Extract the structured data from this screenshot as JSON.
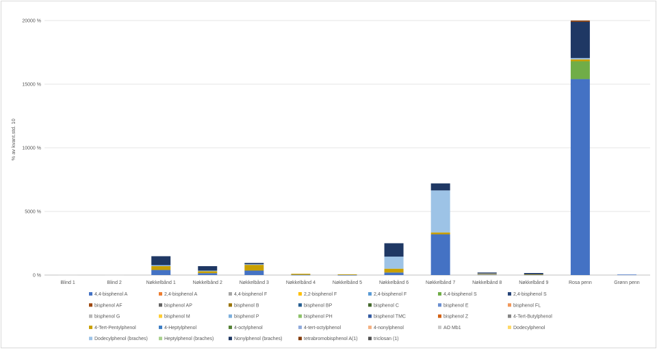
{
  "chart_data": {
    "type": "bar",
    "stacked": true,
    "title": "",
    "xlabel": "",
    "ylabel": "% av kvant.std. 10",
    "ylim": [
      0,
      20000
    ],
    "ytick_labels": [
      "0 %",
      "5000 %",
      "10000 %",
      "15000 %",
      "20000 %"
    ],
    "ytick_values": [
      0,
      5000,
      10000,
      15000,
      20000
    ],
    "grid": true,
    "legend_position": "bottom",
    "categories": [
      "Blind 1",
      "Blind 2",
      "Nøkkelbånd 1",
      "Nøkkelbånd 2",
      "Nøkkelbånd 3",
      "Nøkkelbånd 4",
      "Nøkkelbånd 5",
      "Nøkkelbånd 6",
      "Nøkkelbånd 7",
      "Nøkkelbånd 8",
      "Nøkkelbånd 9",
      "Rosa penn",
      "Grønn penn"
    ],
    "series": [
      {
        "name": "4,4-bisphenol A",
        "color": "#4472c4",
        "values": [
          0,
          0,
          400,
          150,
          350,
          20,
          10,
          200,
          3200,
          40,
          30,
          15400,
          40
        ]
      },
      {
        "name": "2,4-bisphenol A",
        "color": "#ed7d31",
        "values": [
          0,
          0,
          0,
          0,
          0,
          0,
          0,
          0,
          0,
          0,
          0,
          0,
          0
        ]
      },
      {
        "name": "4,4-bisphenol F",
        "color": "#a5a5a5",
        "values": [
          0,
          0,
          0,
          0,
          0,
          0,
          0,
          0,
          0,
          0,
          0,
          0,
          0
        ]
      },
      {
        "name": "2,2-bisphenol F",
        "color": "#ffc000",
        "values": [
          0,
          0,
          0,
          0,
          0,
          0,
          0,
          0,
          0,
          0,
          0,
          0,
          0
        ]
      },
      {
        "name": "2,4-bisphenol F",
        "color": "#5b9bd5",
        "values": [
          0,
          0,
          0,
          0,
          0,
          0,
          0,
          0,
          0,
          0,
          0,
          0,
          0
        ]
      },
      {
        "name": "4,4-bisphenol S",
        "color": "#70ad47",
        "values": [
          0,
          0,
          0,
          0,
          0,
          0,
          0,
          0,
          0,
          0,
          0,
          1400,
          0
        ]
      },
      {
        "name": "2,4-bisphenol S",
        "color": "#264478",
        "values": [
          0,
          0,
          0,
          0,
          0,
          0,
          0,
          0,
          0,
          0,
          0,
          0,
          0
        ]
      },
      {
        "name": "bisphenol AF",
        "color": "#9e480e",
        "values": [
          0,
          0,
          0,
          0,
          0,
          0,
          0,
          0,
          0,
          0,
          0,
          0,
          0
        ]
      },
      {
        "name": "bisphenol AP",
        "color": "#636363",
        "values": [
          0,
          0,
          0,
          0,
          0,
          0,
          0,
          0,
          0,
          0,
          0,
          0,
          0
        ]
      },
      {
        "name": "bisphenol B",
        "color": "#997300",
        "values": [
          0,
          0,
          0,
          0,
          0,
          0,
          0,
          0,
          0,
          0,
          0,
          0,
          0
        ]
      },
      {
        "name": "bisphenol BP",
        "color": "#255e91",
        "values": [
          0,
          0,
          0,
          0,
          0,
          0,
          0,
          0,
          0,
          0,
          0,
          0,
          0
        ]
      },
      {
        "name": "bisphenol C",
        "color": "#43682b",
        "values": [
          0,
          0,
          0,
          0,
          0,
          0,
          0,
          0,
          0,
          0,
          0,
          0,
          0
        ]
      },
      {
        "name": "bisphenol E",
        "color": "#698ed0",
        "values": [
          0,
          0,
          0,
          0,
          0,
          0,
          0,
          0,
          0,
          0,
          0,
          0,
          0
        ]
      },
      {
        "name": "bisphenol FL",
        "color": "#f1975a",
        "values": [
          0,
          0,
          0,
          0,
          0,
          0,
          0,
          0,
          0,
          0,
          0,
          0,
          0
        ]
      },
      {
        "name": "bisphenol G",
        "color": "#b7b7b7",
        "values": [
          0,
          0,
          0,
          0,
          0,
          0,
          0,
          0,
          0,
          0,
          0,
          0,
          0
        ]
      },
      {
        "name": "bisphenol M",
        "color": "#ffcd33",
        "values": [
          0,
          0,
          0,
          0,
          0,
          0,
          0,
          0,
          0,
          0,
          0,
          0,
          0
        ]
      },
      {
        "name": "bisphenol P",
        "color": "#7cafdd",
        "values": [
          0,
          0,
          0,
          0,
          0,
          0,
          0,
          0,
          0,
          0,
          0,
          0,
          0
        ]
      },
      {
        "name": "bisphenol PH",
        "color": "#8cc168",
        "values": [
          0,
          0,
          0,
          0,
          0,
          0,
          0,
          0,
          0,
          0,
          0,
          0,
          0
        ]
      },
      {
        "name": "bisphenol TMC",
        "color": "#335aa1",
        "values": [
          0,
          0,
          0,
          0,
          0,
          0,
          0,
          0,
          0,
          0,
          0,
          0,
          0
        ]
      },
      {
        "name": "bisphenol Z",
        "color": "#d26012",
        "values": [
          0,
          0,
          0,
          0,
          0,
          0,
          0,
          0,
          0,
          0,
          0,
          0,
          0
        ]
      },
      {
        "name": "4-Tert-Butylphenol",
        "color": "#848484",
        "values": [
          0,
          0,
          0,
          0,
          0,
          0,
          0,
          0,
          0,
          0,
          0,
          0,
          0
        ]
      },
      {
        "name": "4-Tert-Pentylphenol",
        "color": "#c9a000",
        "values": [
          0,
          0,
          300,
          150,
          450,
          80,
          50,
          300,
          150,
          40,
          30,
          150,
          0
        ]
      },
      {
        "name": "4-Heptylphenol",
        "color": "#3c7dc4",
        "values": [
          0,
          0,
          0,
          0,
          0,
          0,
          0,
          0,
          0,
          0,
          0,
          0,
          0
        ]
      },
      {
        "name": "4-octylphenol",
        "color": "#548235",
        "values": [
          0,
          0,
          0,
          0,
          0,
          0,
          0,
          0,
          0,
          0,
          0,
          0,
          0
        ]
      },
      {
        "name": "4-tert-octylphenol",
        "color": "#8faadc",
        "values": [
          0,
          0,
          0,
          0,
          0,
          0,
          0,
          0,
          0,
          0,
          0,
          0,
          0
        ]
      },
      {
        "name": "4-nonylphenol",
        "color": "#f4b183",
        "values": [
          0,
          0,
          0,
          0,
          0,
          0,
          0,
          0,
          0,
          0,
          0,
          0,
          0
        ]
      },
      {
        "name": "AO Mb1",
        "color": "#c9c9c9",
        "values": [
          30,
          30,
          0,
          0,
          0,
          0,
          0,
          0,
          0,
          40,
          0,
          0,
          0
        ]
      },
      {
        "name": "Dodecylphenol",
        "color": "#ffd966",
        "values": [
          0,
          0,
          0,
          0,
          0,
          0,
          0,
          0,
          0,
          0,
          0,
          0,
          0
        ]
      },
      {
        "name": "Dodecylphenol (braches)",
        "color": "#9dc3e6",
        "values": [
          0,
          0,
          80,
          50,
          50,
          0,
          0,
          950,
          3300,
          0,
          0,
          100,
          0
        ]
      },
      {
        "name": "Heptylphenol (braches)",
        "color": "#a9d18e",
        "values": [
          0,
          0,
          0,
          0,
          0,
          0,
          0,
          0,
          0,
          0,
          0,
          0,
          0
        ]
      },
      {
        "name": "Nonylphenol (braches)",
        "color": "#1f3864",
        "values": [
          0,
          0,
          700,
          350,
          100,
          0,
          0,
          1050,
          550,
          80,
          100,
          2850,
          0
        ]
      },
      {
        "name": "tetrabromobisphenol A(1)",
        "color": "#843c0c",
        "values": [
          0,
          0,
          0,
          0,
          0,
          0,
          0,
          0,
          0,
          0,
          0,
          100,
          0
        ]
      },
      {
        "name": "triclosan (1)",
        "color": "#525252",
        "values": [
          0,
          0,
          0,
          0,
          0,
          0,
          0,
          0,
          0,
          0,
          0,
          0,
          0
        ]
      }
    ]
  }
}
